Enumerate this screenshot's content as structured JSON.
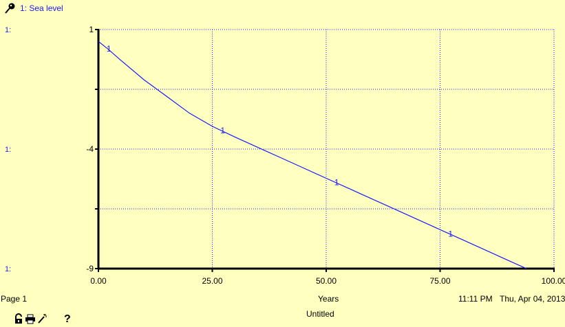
{
  "legend": {
    "icon": "pin-icon",
    "label": "1: Sea level"
  },
  "scale_labels": {
    "top": "1:",
    "middle": "1:",
    "bottom": "1:"
  },
  "footer": {
    "page": "Page 1",
    "x_axis_title": "Years",
    "time": "11:11 PM",
    "date": "Thu, Apr 04, 2013",
    "document_title": "Untitled",
    "help": "?"
  },
  "toolbar_icons": [
    "lock-icon",
    "print-icon",
    "wand-icon"
  ],
  "colors": {
    "background": "#ffffc0",
    "series": "#1a1aff",
    "grid": "#1a1aff",
    "axis": "#000000"
  },
  "chart_data": {
    "type": "line",
    "xlim": [
      0,
      100
    ],
    "ylim": [
      -9,
      1
    ],
    "x_ticks": [
      0,
      25,
      50,
      75,
      100
    ],
    "x_tick_labels": [
      "0.00",
      "25.00",
      "50.00",
      "75.00",
      "100.00"
    ],
    "y_ticks": [
      1,
      -1.5,
      -4,
      -6.5,
      -9
    ],
    "y_tick_labels": [
      "1",
      "",
      "-4",
      "",
      "-9"
    ],
    "xlabel": "Years",
    "grid": true,
    "series": [
      {
        "name": "1: Sea level",
        "marker_label": "1",
        "marker_x": [
          2,
          27,
          52,
          77
        ],
        "x": [
          0,
          2,
          5,
          10,
          15,
          20,
          25,
          30,
          35,
          40,
          45,
          50,
          55,
          60,
          65,
          70,
          75,
          80,
          85,
          90,
          95,
          100
        ],
        "y": [
          0.5,
          0.2,
          -0.3,
          -1.1,
          -1.8,
          -2.5,
          -3.05,
          -3.5,
          -3.93,
          -4.36,
          -4.79,
          -5.22,
          -5.65,
          -6.08,
          -6.51,
          -6.94,
          -7.37,
          -7.8,
          -8.23,
          -8.66,
          -9.09,
          -9.5
        ]
      }
    ]
  }
}
